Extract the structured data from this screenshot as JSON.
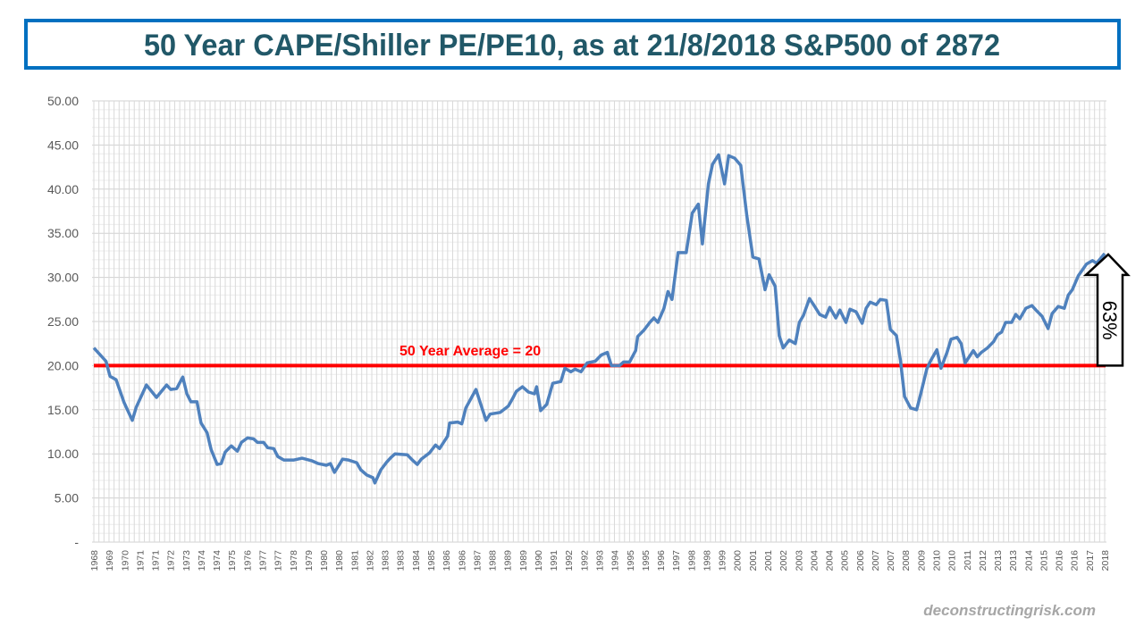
{
  "chart_data": {
    "type": "line",
    "title": "50 Year CAPE/Shiller PE/PE10, as at 21/8/2018 S&P500 of 2872",
    "xlabel": "",
    "ylabel": "",
    "ylim": [
      0,
      50
    ],
    "xlim": [
      1968.5,
      2018.5
    ],
    "grid": true,
    "y_ticks": [
      "-",
      "5.00",
      "10.00",
      "15.00",
      "20.00",
      "25.00",
      "30.00",
      "35.00",
      "40.00",
      "45.00",
      "50.00"
    ],
    "x_tick_labels": [
      "1968",
      "1969",
      "1970",
      "1971",
      "1971",
      "1972",
      "1973",
      "1974",
      "1974",
      "1975",
      "1976",
      "1977",
      "1977",
      "1978",
      "1979",
      "1980",
      "1980",
      "1981",
      "1982",
      "1983",
      "1983",
      "1984",
      "1985",
      "1986",
      "1986",
      "1987",
      "1988",
      "1989",
      "1989",
      "1990",
      "1991",
      "1992",
      "1992",
      "1993",
      "1994",
      "1995",
      "1995",
      "1996",
      "1997",
      "1998",
      "1998",
      "1999",
      "2000",
      "2001",
      "2001",
      "2002",
      "2003",
      "2004",
      "2004",
      "2005",
      "2006",
      "2007",
      "2007",
      "2008",
      "2009",
      "2010",
      "2010",
      "2011",
      "2012",
      "2013",
      "2013",
      "2014",
      "2015",
      "2016",
      "2016",
      "2017",
      "2018"
    ],
    "series": [
      {
        "color": "#4f81bd",
        "x": [
          1968.5,
          1969.1,
          1969.3,
          1969.6,
          1970.0,
          1970.4,
          1970.6,
          1971.1,
          1971.6,
          1972.1,
          1972.3,
          1972.6,
          1972.9,
          1973.1,
          1973.3,
          1973.6,
          1973.8,
          1974.1,
          1974.3,
          1974.6,
          1974.8,
          1975.0,
          1975.3,
          1975.6,
          1975.8,
          1976.1,
          1976.4,
          1976.6,
          1976.9,
          1977.1,
          1977.4,
          1977.6,
          1977.9,
          1978.4,
          1978.8,
          1979.3,
          1979.6,
          1980.0,
          1980.2,
          1980.4,
          1980.7,
          1980.8,
          1981.1,
          1981.5,
          1981.7,
          1982.0,
          1982.3,
          1982.4,
          1982.7,
          1983.0,
          1983.2,
          1983.4,
          1984.0,
          1984.3,
          1984.5,
          1984.7,
          1985.1,
          1985.4,
          1985.6,
          1986.0,
          1986.1,
          1986.5,
          1986.7,
          1986.9,
          1987.4,
          1987.9,
          1988.1,
          1988.6,
          1989.0,
          1989.2,
          1989.4,
          1989.7,
          1990.0,
          1990.3,
          1990.4,
          1990.6,
          1990.9,
          1991.2,
          1991.6,
          1991.8,
          1992.1,
          1992.3,
          1992.6,
          1992.9,
          1993.3,
          1993.6,
          1993.9,
          1994.1,
          1994.5,
          1994.7,
          1995.0,
          1995.3,
          1995.4,
          1995.7,
          1996.0,
          1996.2,
          1996.4,
          1996.7,
          1996.9,
          1997.1,
          1997.4,
          1997.8,
          1998.1,
          1998.4,
          1998.6,
          1998.9,
          1999.1,
          1999.4,
          1999.7,
          1999.9,
          2000.2,
          2000.5,
          2000.8,
          2001.1,
          2001.4,
          2001.7,
          2001.9,
          2002.2,
          2002.4,
          2002.6,
          2002.9,
          2003.2,
          2003.4,
          2003.6,
          2003.9,
          2004.1,
          2004.4,
          2004.7,
          2004.9,
          2005.2,
          2005.4,
          2005.7,
          2005.9,
          2006.2,
          2006.5,
          2006.7,
          2006.9,
          2007.2,
          2007.4,
          2007.7,
          2007.9,
          2008.2,
          2008.4,
          2008.6,
          2008.9,
          2009.2,
          2009.4,
          2009.7,
          2009.9,
          2010.2,
          2010.4,
          2010.7,
          2010.9,
          2011.2,
          2011.4,
          2011.6,
          2012.0,
          2012.2,
          2012.4,
          2012.7,
          2013.0,
          2013.2,
          2013.4,
          2013.6,
          2013.9,
          2014.1,
          2014.3,
          2014.6,
          2014.9,
          2015.1,
          2015.4,
          2015.7,
          2015.9,
          2016.2,
          2016.5,
          2016.7,
          2016.9,
          2017.2,
          2017.6,
          2017.9,
          2018.1,
          2018.5
        ],
        "y": [
          22.0,
          20.5,
          18.8,
          18.4,
          15.8,
          13.8,
          15.3,
          17.8,
          16.4,
          17.8,
          17.3,
          17.4,
          18.7,
          16.8,
          15.9,
          15.9,
          13.5,
          12.4,
          10.5,
          8.8,
          8.9,
          10.2,
          10.9,
          10.3,
          11.3,
          11.8,
          11.7,
          11.3,
          11.3,
          10.7,
          10.6,
          9.7,
          9.3,
          9.3,
          9.5,
          9.2,
          8.9,
          8.7,
          8.9,
          7.9,
          9.0,
          9.4,
          9.3,
          9.0,
          8.2,
          7.6,
          7.3,
          6.7,
          8.2,
          9.1,
          9.6,
          10.0,
          9.9,
          9.2,
          8.8,
          9.4,
          10.1,
          11.0,
          10.6,
          12.0,
          13.5,
          13.6,
          13.4,
          15.2,
          17.3,
          13.8,
          14.5,
          14.7,
          15.4,
          16.2,
          17.1,
          17.6,
          17.0,
          16.8,
          17.6,
          14.9,
          15.6,
          18.0,
          18.2,
          19.7,
          19.3,
          19.6,
          19.3,
          20.3,
          20.5,
          21.2,
          21.5,
          20.0,
          20.0,
          20.4,
          20.4,
          21.7,
          23.3,
          24.0,
          24.9,
          25.4,
          24.9,
          26.5,
          28.4,
          27.5,
          32.8,
          32.8,
          37.3,
          38.3,
          33.8,
          40.6,
          42.8,
          43.9,
          40.6,
          43.8,
          43.5,
          42.7,
          37.0,
          32.3,
          32.1,
          28.6,
          30.3,
          29.0,
          23.4,
          22.0,
          22.9,
          22.5,
          24.9,
          25.7,
          27.6,
          26.9,
          25.8,
          25.5,
          26.6,
          25.4,
          26.3,
          24.9,
          26.4,
          26.1,
          24.8,
          26.5,
          27.2,
          26.9,
          27.5,
          27.4,
          24.1,
          23.4,
          20.6,
          16.5,
          15.2,
          15.0,
          16.8,
          19.6,
          20.6,
          21.8,
          19.7,
          21.5,
          23.0,
          23.2,
          22.5,
          20.3,
          21.7,
          21.0,
          21.5,
          22.0,
          22.7,
          23.5,
          23.8,
          24.9,
          24.9,
          25.8,
          25.3,
          26.5,
          26.8,
          26.3,
          25.6,
          24.2,
          25.9,
          26.7,
          26.5,
          28.0,
          28.6,
          30.2,
          31.5,
          31.9,
          31.6,
          32.7
        ]
      }
    ],
    "average_line": {
      "value": 20,
      "label": "50 Year Average = 20",
      "color": "#ff0000"
    },
    "arrow_annotation": {
      "label": "63%",
      "from": 20,
      "to": 32.7
    },
    "watermark": "deconstructingrisk.com",
    "colors": {
      "title_border": "#0070c0",
      "title_text": "#215868",
      "line": "#4f81bd",
      "average": "#ff0000"
    }
  }
}
